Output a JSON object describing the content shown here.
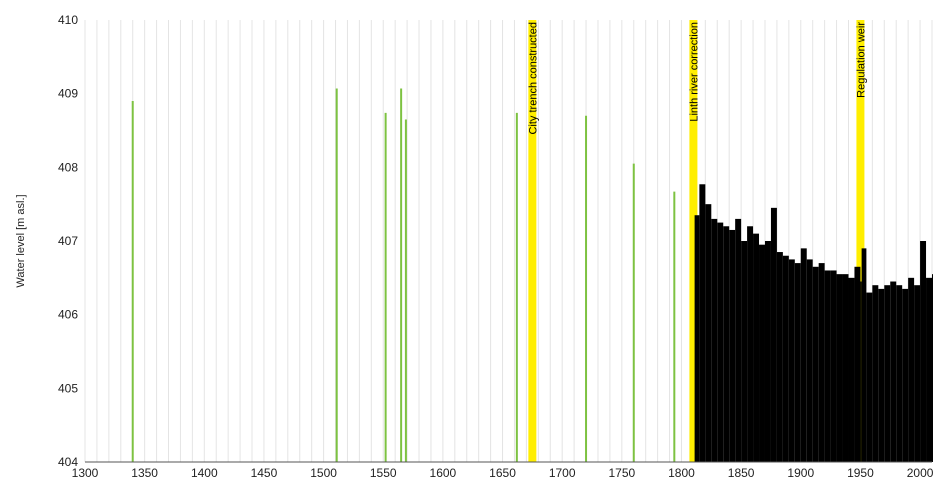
{
  "chart_data": {
    "type": "bar",
    "title": "",
    "xlabel": "",
    "ylabel": "Water level  [m asl.]",
    "xlim": [
      1300,
      2010
    ],
    "ylim": [
      404,
      410
    ],
    "x_ticks": [
      1300,
      1350,
      1400,
      1450,
      1500,
      1550,
      1600,
      1650,
      1700,
      1750,
      1800,
      1850,
      1900,
      1950,
      2000
    ],
    "y_ticks": [
      404,
      405,
      406,
      407,
      408,
      409,
      410
    ],
    "grid": "vertical",
    "legend": "none",
    "colors": {
      "historical": "#7dc241",
      "measured": "#000000",
      "events": "#ffee00"
    },
    "events": [
      {
        "year": 1675,
        "label": "City trench constructed"
      },
      {
        "year": 1810,
        "label": "Linth river correction"
      },
      {
        "year": 1950,
        "label": "Regulation weir"
      }
    ],
    "series": [
      {
        "x": [
          1340,
          1511,
          1552,
          1565,
          1569,
          1662,
          1720,
          1760,
          1794
        ],
        "values": [
          408.9,
          409.07,
          408.74,
          409.07,
          408.65,
          408.74,
          408.7,
          408.05,
          407.67
        ]
      },
      {
        "x": [
          1811,
          1815,
          1820,
          1825,
          1830,
          1835,
          1840,
          1845,
          1850,
          1855,
          1860,
          1865,
          1870,
          1875,
          1880,
          1885,
          1890,
          1895,
          1900,
          1905,
          1910,
          1915,
          1920,
          1925,
          1930,
          1935,
          1940,
          1945,
          1950,
          1951,
          1955,
          1960,
          1965,
          1970,
          1975,
          1980,
          1985,
          1990,
          1995,
          2000,
          2005,
          2010
        ],
        "values": [
          407.35,
          407.77,
          407.5,
          407.3,
          407.25,
          407.2,
          407.15,
          407.3,
          407.0,
          407.2,
          407.1,
          406.95,
          407.0,
          407.45,
          406.85,
          406.8,
          406.75,
          406.7,
          406.9,
          406.75,
          406.65,
          406.7,
          406.6,
          406.6,
          406.55,
          406.55,
          406.5,
          406.65,
          406.45,
          406.9,
          406.3,
          406.4,
          406.35,
          406.4,
          406.45,
          406.4,
          406.35,
          406.5,
          406.4,
          407.0,
          406.5,
          406.55
        ]
      }
    ]
  }
}
